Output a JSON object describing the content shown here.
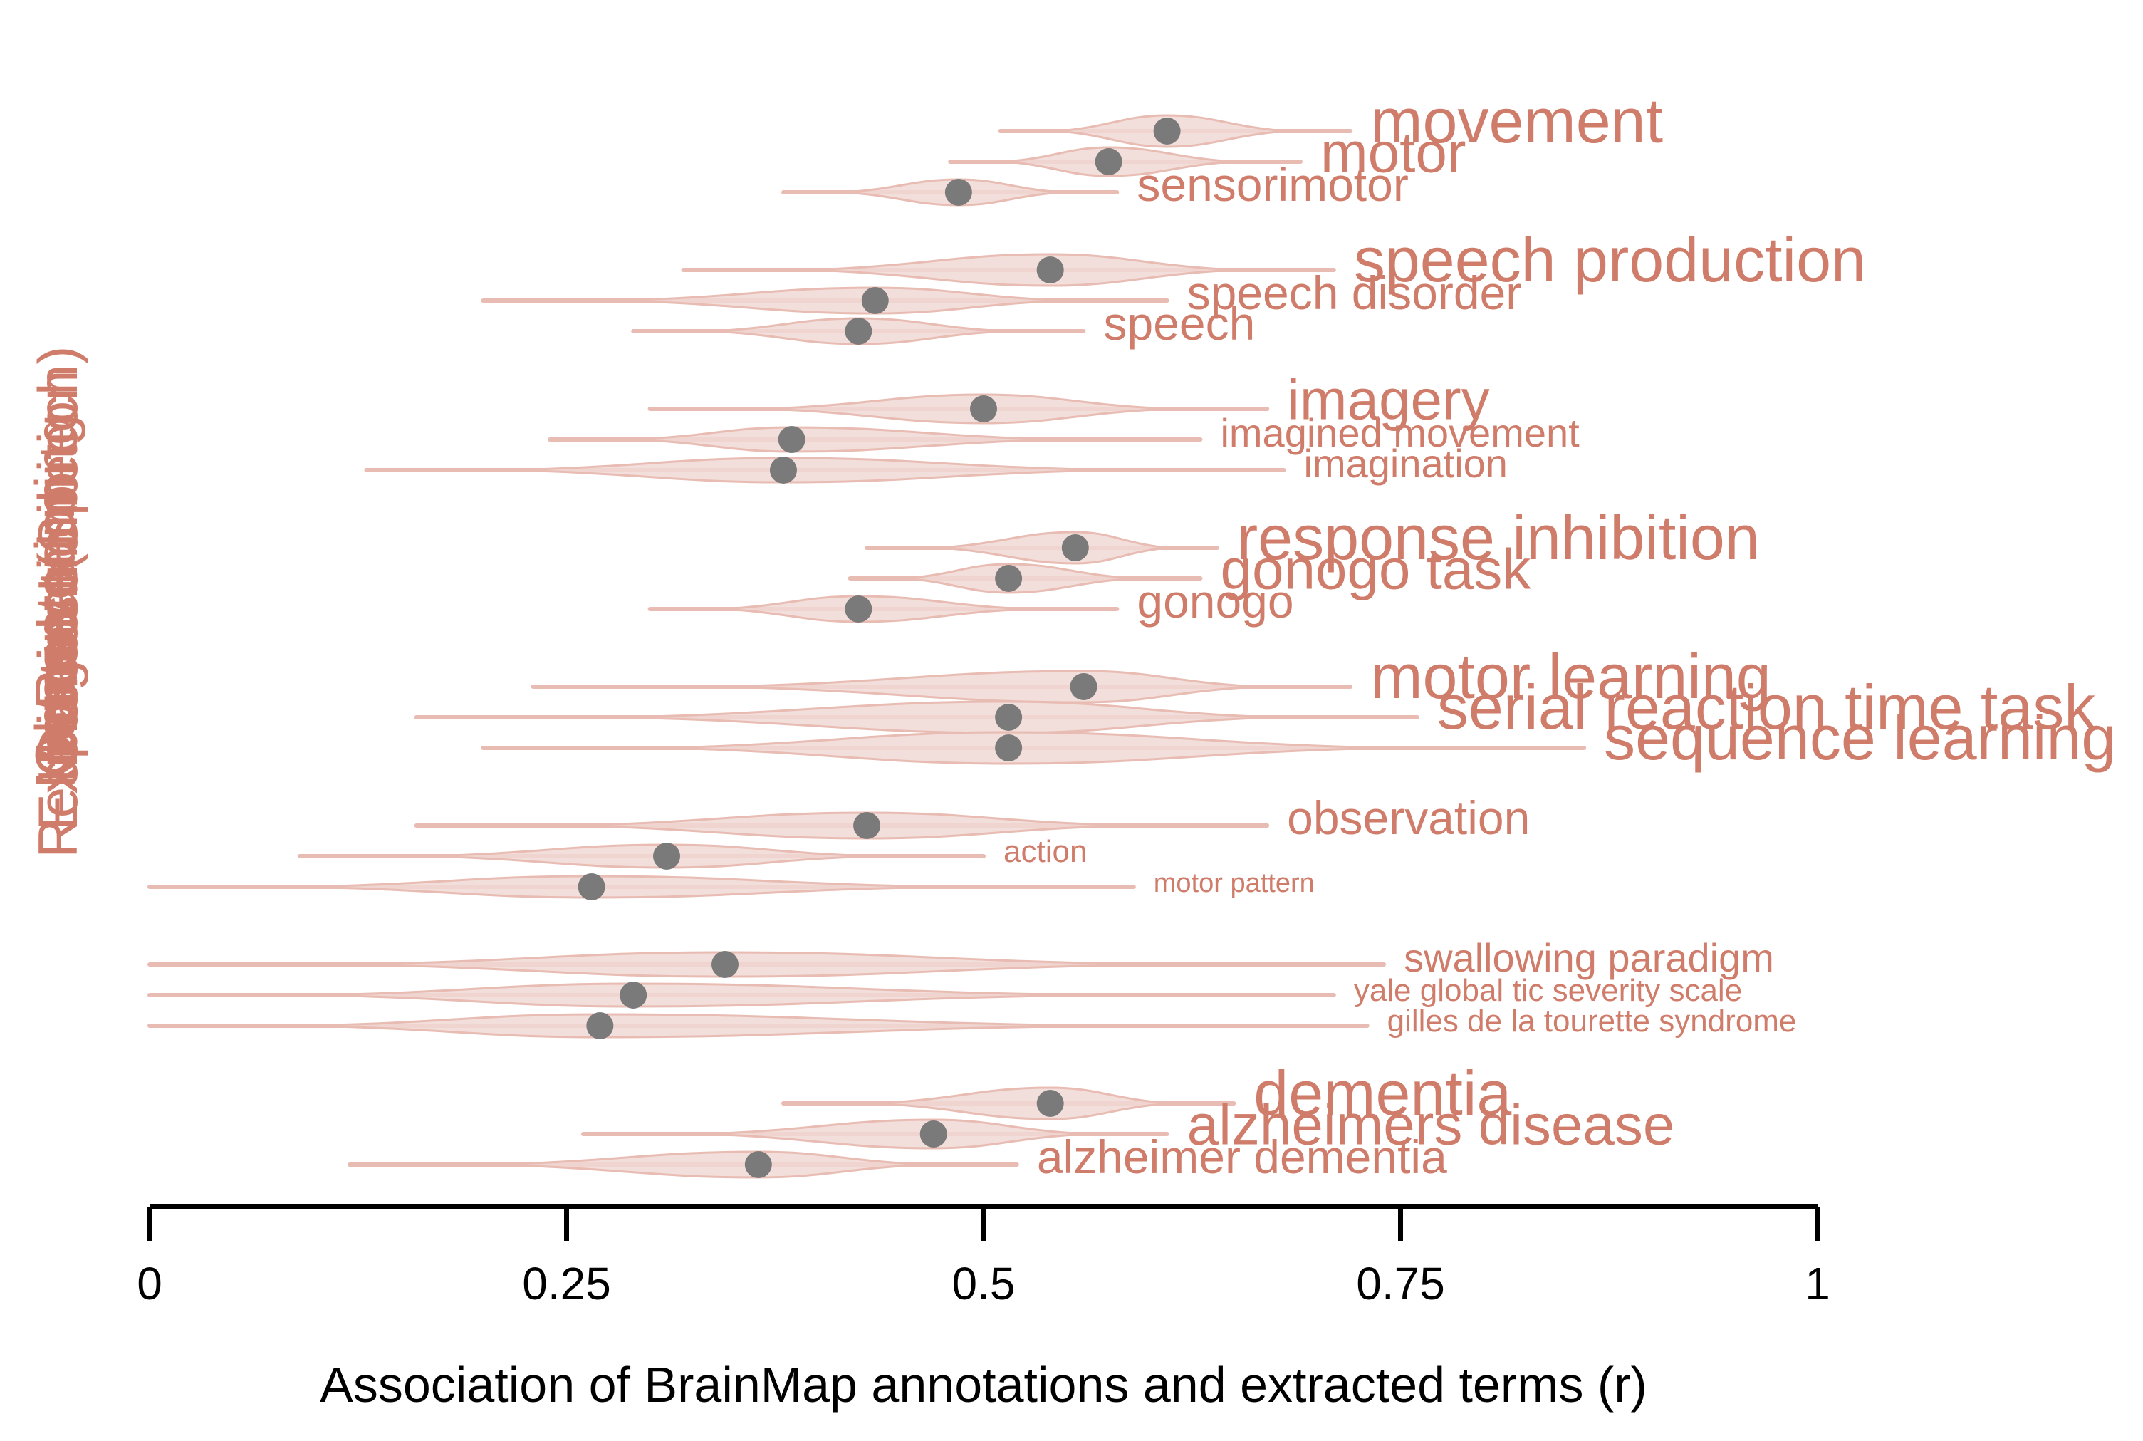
{
  "colors": {
    "accent": "#d07c6a",
    "violin_fill": "#f0d8d3",
    "violin_stroke": "#e8bcb3",
    "point": "#7a7a7a",
    "axis": "#000000"
  },
  "chart_data": {
    "type": "violin",
    "xlabel": "Association of BrainMap annotations and extracted terms (r)",
    "xlim": [
      0,
      1
    ],
    "xticks": [
      0,
      0.25,
      0.5,
      0.75,
      1
    ],
    "xtick_labels": [
      "0",
      "0.25",
      "0.5",
      "0.75",
      "1"
    ],
    "y_label_stack": [
      "Execution (Speech)",
      "Motor Learning",
      "Response Inhibition",
      "Observation",
      "Imagination",
      "Rest",
      "Disease"
    ],
    "groups": [
      {
        "terms": [
          {
            "term": "movement",
            "r": 0.61,
            "min": 0.51,
            "max": 0.72,
            "label_rank": 1
          },
          {
            "term": "motor",
            "r": 0.575,
            "min": 0.48,
            "max": 0.69,
            "label_rank": 2
          },
          {
            "term": "sensorimotor",
            "r": 0.485,
            "min": 0.38,
            "max": 0.58,
            "label_rank": 3
          }
        ]
      },
      {
        "terms": [
          {
            "term": "speech production",
            "r": 0.54,
            "min": 0.32,
            "max": 0.71,
            "label_rank": 1
          },
          {
            "term": "speech disorder",
            "r": 0.435,
            "min": 0.2,
            "max": 0.61,
            "label_rank": 3
          },
          {
            "term": "speech",
            "r": 0.425,
            "min": 0.29,
            "max": 0.56,
            "label_rank": 3
          }
        ]
      },
      {
        "terms": [
          {
            "term": "imagery",
            "r": 0.5,
            "min": 0.3,
            "max": 0.67,
            "label_rank": 2
          },
          {
            "term": "imagined movement",
            "r": 0.385,
            "min": 0.24,
            "max": 0.63,
            "label_rank": 4
          },
          {
            "term": "imagination",
            "r": 0.38,
            "min": 0.13,
            "max": 0.68,
            "label_rank": 4
          }
        ]
      },
      {
        "terms": [
          {
            "term": "response inhibition",
            "r": 0.555,
            "min": 0.43,
            "max": 0.64,
            "label_rank": 1
          },
          {
            "term": "gonogo task",
            "r": 0.515,
            "min": 0.42,
            "max": 0.63,
            "label_rank": 2
          },
          {
            "term": "gonogo",
            "r": 0.425,
            "min": 0.3,
            "max": 0.58,
            "label_rank": 3
          }
        ]
      },
      {
        "terms": [
          {
            "term": "motor learning",
            "r": 0.56,
            "min": 0.23,
            "max": 0.72,
            "label_rank": 1
          },
          {
            "term": "serial reaction time task",
            "r": 0.515,
            "min": 0.16,
            "max": 0.76,
            "label_rank": 1
          },
          {
            "term": "sequence learning",
            "r": 0.515,
            "min": 0.2,
            "max": 0.86,
            "label_rank": 1
          }
        ]
      },
      {
        "terms": [
          {
            "term": "observation",
            "r": 0.43,
            "min": 0.16,
            "max": 0.67,
            "label_rank": 3
          },
          {
            "term": "action",
            "r": 0.31,
            "min": 0.09,
            "max": 0.5,
            "label_rank": 5
          },
          {
            "term": "motor pattern",
            "r": 0.265,
            "min": 0.0,
            "max": 0.59,
            "label_rank": 6
          }
        ]
      },
      {
        "terms": [
          {
            "term": "swallowing paradigm",
            "r": 0.345,
            "min": 0.0,
            "max": 0.74,
            "label_rank": 4
          },
          {
            "term": "yale global tic severity scale",
            "r": 0.29,
            "min": 0.0,
            "max": 0.71,
            "label_rank": 5
          },
          {
            "term": "gilles de la tourette syndrome",
            "r": 0.27,
            "min": 0.0,
            "max": 0.73,
            "label_rank": 5
          }
        ]
      },
      {
        "terms": [
          {
            "term": "dementia",
            "r": 0.54,
            "min": 0.38,
            "max": 0.65,
            "label_rank": 1
          },
          {
            "term": "alzheimers disease",
            "r": 0.47,
            "min": 0.26,
            "max": 0.61,
            "label_rank": 2
          },
          {
            "term": "alzheimer dementia",
            "r": 0.365,
            "min": 0.12,
            "max": 0.52,
            "label_rank": 3
          }
        ]
      }
    ]
  }
}
